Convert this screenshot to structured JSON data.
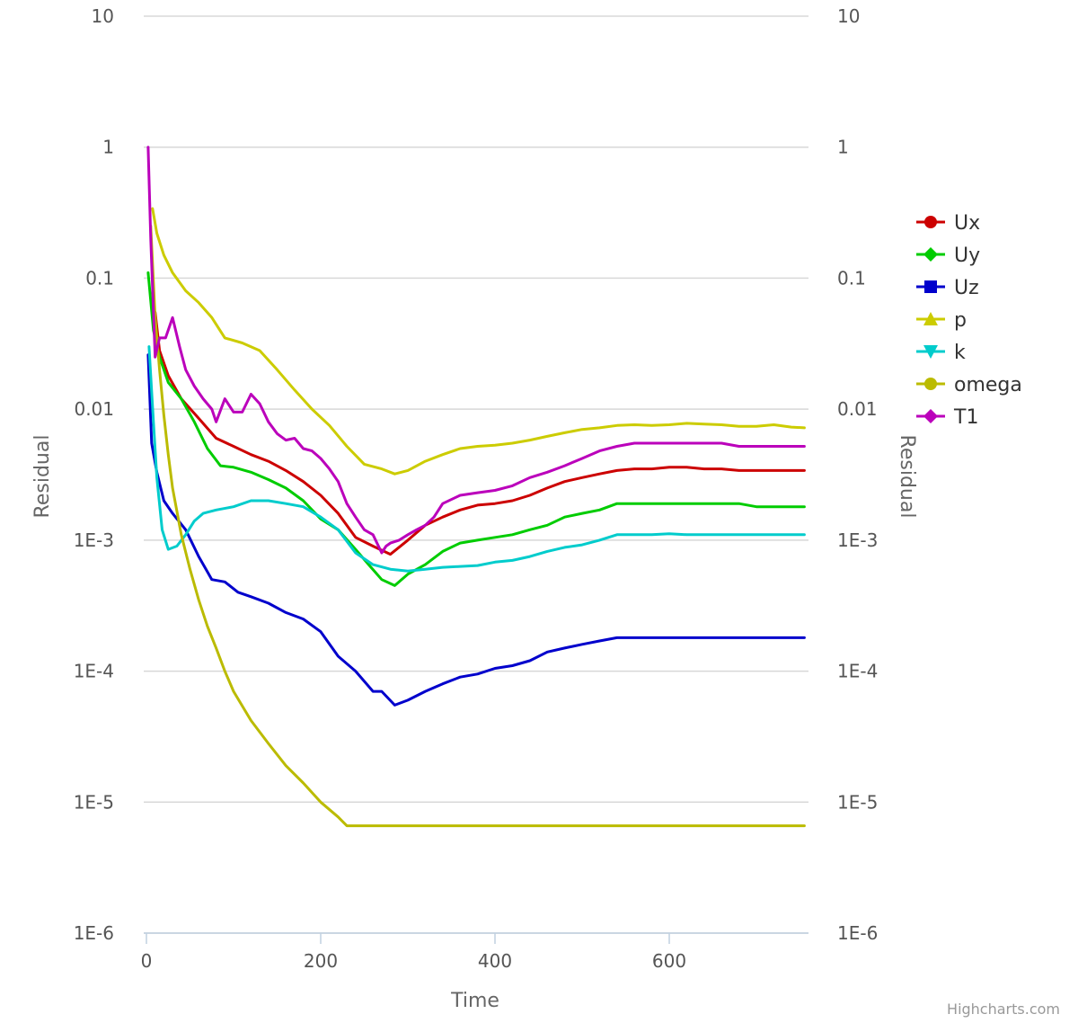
{
  "credits": "Highcharts.com",
  "chart_data": {
    "type": "line",
    "title": "",
    "xlabel": "Time",
    "ylabel": "Residual",
    "ylabel_right": "Residual",
    "xlim": [
      0,
      760
    ],
    "ylim": [
      1e-06,
      10
    ],
    "y_scale": "log",
    "x_ticks": [
      "0",
      "200",
      "400",
      "600"
    ],
    "x_tick_values": [
      0,
      200,
      400,
      600
    ],
    "y_ticks": [
      "10",
      "1",
      "0.1",
      "0.01",
      "1E-3",
      "1E-4",
      "1E-5",
      "1E-6"
    ],
    "y_tick_values": [
      10,
      1,
      0.1,
      0.01,
      0.001,
      0.0001,
      1e-05,
      1e-06
    ],
    "grid": true,
    "legend_position": "right",
    "series": [
      {
        "name": "Ux",
        "color": "#cc0000",
        "marker": "circle",
        "x": [
          10,
          15,
          25,
          40,
          60,
          80,
          100,
          120,
          140,
          160,
          180,
          200,
          220,
          240,
          260,
          280,
          300,
          320,
          340,
          360,
          380,
          400,
          420,
          440,
          460,
          480,
          500,
          520,
          540,
          560,
          580,
          600,
          620,
          640,
          660,
          680,
          700,
          720,
          740,
          755
        ],
        "y": [
          0.055,
          0.028,
          0.018,
          0.012,
          0.0085,
          0.006,
          0.0052,
          0.0045,
          0.004,
          0.0034,
          0.0028,
          0.0022,
          0.0016,
          0.00105,
          0.0009,
          0.00078,
          0.001,
          0.0013,
          0.0015,
          0.0017,
          0.00185,
          0.0019,
          0.002,
          0.0022,
          0.0025,
          0.0028,
          0.003,
          0.0032,
          0.0034,
          0.0035,
          0.0035,
          0.0036,
          0.0036,
          0.0035,
          0.0035,
          0.0034,
          0.0034,
          0.0034,
          0.0034,
          0.0034
        ]
      },
      {
        "name": "Uy",
        "color": "#00cc00",
        "marker": "diamond",
        "x": [
          2,
          8,
          15,
          25,
          40,
          55,
          70,
          85,
          100,
          120,
          140,
          160,
          180,
          200,
          220,
          240,
          255,
          270,
          285,
          300,
          320,
          340,
          360,
          380,
          400,
          420,
          440,
          460,
          480,
          500,
          520,
          540,
          560,
          580,
          600,
          620,
          640,
          660,
          680,
          700,
          720,
          740,
          755
        ],
        "y": [
          0.11,
          0.04,
          0.025,
          0.016,
          0.012,
          0.008,
          0.005,
          0.0037,
          0.0036,
          0.0033,
          0.0029,
          0.0025,
          0.002,
          0.00145,
          0.0012,
          0.00085,
          0.00065,
          0.0005,
          0.00045,
          0.00055,
          0.00065,
          0.00082,
          0.00095,
          0.001,
          0.00105,
          0.0011,
          0.0012,
          0.0013,
          0.0015,
          0.0016,
          0.0017,
          0.0019,
          0.0019,
          0.0019,
          0.0019,
          0.0019,
          0.0019,
          0.0019,
          0.0019,
          0.0018,
          0.0018,
          0.0018,
          0.0018
        ]
      },
      {
        "name": "Uz",
        "color": "#0000cc",
        "marker": "square",
        "x": [
          2,
          6,
          12,
          20,
          30,
          45,
          60,
          75,
          90,
          105,
          120,
          140,
          160,
          180,
          200,
          220,
          240,
          260,
          270,
          285,
          300,
          320,
          340,
          360,
          380,
          400,
          420,
          440,
          460,
          480,
          500,
          520,
          540,
          560,
          580,
          600,
          620,
          640,
          660,
          680,
          700,
          720,
          740,
          755
        ],
        "y": [
          0.026,
          0.0055,
          0.0033,
          0.002,
          0.0016,
          0.0012,
          0.00075,
          0.0005,
          0.00048,
          0.0004,
          0.00037,
          0.00033,
          0.00028,
          0.00025,
          0.0002,
          0.00013,
          0.0001,
          7e-05,
          7e-05,
          5.5e-05,
          6e-05,
          7e-05,
          8e-05,
          9e-05,
          9.5e-05,
          0.000105,
          0.00011,
          0.00012,
          0.00014,
          0.00015,
          0.00016,
          0.00017,
          0.00018,
          0.00018,
          0.00018,
          0.00018,
          0.00018,
          0.00018,
          0.00018,
          0.00018,
          0.00018,
          0.00018,
          0.00018,
          0.00018
        ]
      },
      {
        "name": "p",
        "color": "#cccc00",
        "marker": "triangle",
        "x": [
          7,
          12,
          20,
          30,
          45,
          60,
          75,
          90,
          110,
          130,
          150,
          170,
          190,
          210,
          230,
          250,
          270,
          285,
          300,
          320,
          340,
          360,
          380,
          400,
          420,
          440,
          460,
          480,
          500,
          520,
          540,
          560,
          580,
          600,
          620,
          640,
          660,
          680,
          700,
          720,
          740,
          755
        ],
        "y": [
          0.34,
          0.22,
          0.15,
          0.11,
          0.08,
          0.065,
          0.05,
          0.035,
          0.032,
          0.028,
          0.02,
          0.014,
          0.01,
          0.0075,
          0.0052,
          0.0038,
          0.0035,
          0.0032,
          0.0034,
          0.004,
          0.0045,
          0.005,
          0.0052,
          0.0053,
          0.0055,
          0.0058,
          0.0062,
          0.0066,
          0.007,
          0.0072,
          0.0075,
          0.0076,
          0.0075,
          0.0076,
          0.0078,
          0.0077,
          0.0076,
          0.0074,
          0.0074,
          0.0076,
          0.0073,
          0.0072
        ]
      },
      {
        "name": "k",
        "color": "#00cccc",
        "marker": "triangle-down",
        "x": [
          3,
          8,
          12,
          18,
          25,
          35,
          45,
          55,
          65,
          80,
          100,
          120,
          140,
          160,
          180,
          200,
          220,
          240,
          260,
          280,
          300,
          320,
          340,
          360,
          380,
          400,
          420,
          440,
          460,
          480,
          500,
          520,
          540,
          560,
          580,
          600,
          620,
          640,
          660,
          680,
          700,
          720,
          740,
          755
        ],
        "y": [
          0.03,
          0.008,
          0.003,
          0.0012,
          0.00085,
          0.0009,
          0.0011,
          0.0014,
          0.0016,
          0.0017,
          0.0018,
          0.002,
          0.002,
          0.0019,
          0.0018,
          0.0015,
          0.0012,
          0.0008,
          0.00065,
          0.0006,
          0.00058,
          0.0006,
          0.00062,
          0.00063,
          0.00064,
          0.00068,
          0.0007,
          0.00075,
          0.00082,
          0.00088,
          0.00092,
          0.001,
          0.0011,
          0.0011,
          0.0011,
          0.00112,
          0.0011,
          0.0011,
          0.0011,
          0.0011,
          0.0011,
          0.0011,
          0.0011,
          0.0011
        ]
      },
      {
        "name": "omega",
        "color": "#bbbb00",
        "marker": "circle",
        "x": [
          5,
          10,
          15,
          20,
          25,
          30,
          40,
          50,
          60,
          70,
          80,
          90,
          100,
          120,
          140,
          160,
          180,
          200,
          220,
          230,
          240,
          260,
          280,
          300,
          320,
          340,
          360,
          380,
          400,
          420,
          440,
          460,
          480,
          500,
          520,
          540,
          560,
          580,
          600,
          620,
          640,
          660,
          680,
          700,
          720,
          740,
          755
        ],
        "y": [
          0.25,
          0.05,
          0.02,
          0.009,
          0.0045,
          0.0025,
          0.0011,
          0.0006,
          0.00035,
          0.00022,
          0.00015,
          0.0001,
          7e-05,
          4.2e-05,
          2.8e-05,
          1.9e-05,
          1.4e-05,
          1e-05,
          7.7e-06,
          6.6e-06,
          6.6e-06,
          6.6e-06,
          6.6e-06,
          6.6e-06,
          6.6e-06,
          6.6e-06,
          6.6e-06,
          6.6e-06,
          6.6e-06,
          6.6e-06,
          6.6e-06,
          6.6e-06,
          6.6e-06,
          6.6e-06,
          6.6e-06,
          6.6e-06,
          6.6e-06,
          6.6e-06,
          6.6e-06,
          6.6e-06,
          6.6e-06,
          6.6e-06,
          6.6e-06,
          6.6e-06,
          6.6e-06,
          6.6e-06,
          6.6e-06
        ]
      },
      {
        "name": "T1",
        "color": "#bb00bb",
        "marker": "diamond",
        "x": [
          2,
          5,
          10,
          15,
          22,
          30,
          38,
          45,
          55,
          65,
          75,
          80,
          90,
          100,
          110,
          120,
          130,
          140,
          150,
          160,
          170,
          180,
          190,
          200,
          210,
          220,
          230,
          240,
          250,
          260,
          270,
          275,
          280,
          290,
          300,
          310,
          320,
          330,
          340,
          360,
          380,
          400,
          420,
          440,
          460,
          480,
          500,
          520,
          540,
          560,
          580,
          600,
          620,
          640,
          660,
          680,
          700,
          720,
          740,
          755
        ],
        "y": [
          1.0,
          0.2,
          0.025,
          0.035,
          0.035,
          0.05,
          0.03,
          0.02,
          0.015,
          0.012,
          0.01,
          0.008,
          0.012,
          0.0095,
          0.0095,
          0.013,
          0.011,
          0.008,
          0.0065,
          0.0058,
          0.006,
          0.005,
          0.0048,
          0.0042,
          0.0035,
          0.0028,
          0.0019,
          0.0015,
          0.0012,
          0.0011,
          0.0008,
          0.0009,
          0.00095,
          0.001,
          0.0011,
          0.0012,
          0.0013,
          0.0015,
          0.0019,
          0.0022,
          0.0023,
          0.0024,
          0.0026,
          0.003,
          0.0033,
          0.0037,
          0.0042,
          0.0048,
          0.0052,
          0.0055,
          0.0055,
          0.0055,
          0.0055,
          0.0055,
          0.0055,
          0.0052,
          0.0052,
          0.0052,
          0.0052,
          0.0052
        ]
      }
    ]
  }
}
